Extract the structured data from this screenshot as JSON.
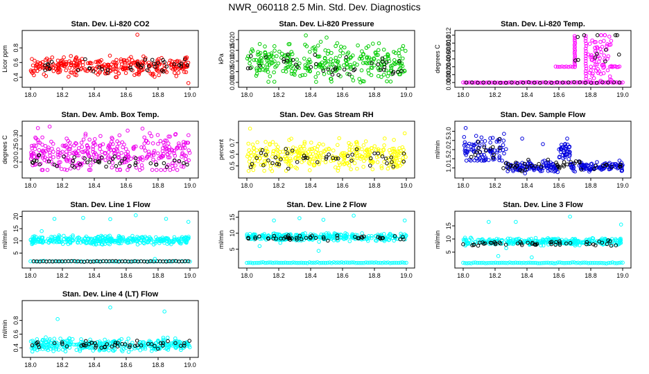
{
  "figure_title": "NWR_060118  2.5 Min. Std. Dev. Diagnostics",
  "chart_data": [
    {
      "type": "scatter",
      "title": "Stan. Dev. Li-820 CO2",
      "ylabel": "Licor ppm",
      "xlim": [
        18.0,
        19.0
      ],
      "xticks": [
        "18.0",
        "18.2",
        "18.4",
        "18.6",
        "18.8",
        "19.0"
      ],
      "ylim": [
        0.3,
        1.0
      ],
      "yticks": [
        "0.4",
        "0.6",
        "0.8"
      ],
      "color": "#ff0000",
      "series": [
        {
          "name": "main",
          "color": "#ff0000",
          "mode": "noise",
          "n": 320,
          "center": 0.55,
          "spread": 0.06,
          "min": 0.4,
          "max": 0.72
        },
        {
          "name": "black",
          "color": "#000000",
          "mode": "noise",
          "n": 40,
          "center": 0.55,
          "spread": 0.05,
          "min": 0.45,
          "max": 0.7
        }
      ],
      "outliers": [
        [
          18.67,
          0.98
        ],
        [
          18.99,
          0.32
        ],
        [
          18.98,
          0.67
        ]
      ]
    },
    {
      "type": "scatter",
      "title": "Stan. Dev. Li-820 Pressure",
      "ylabel": "kPa",
      "xlim": [
        18.0,
        19.0
      ],
      "xticks": [
        "18.0",
        "18.2",
        "18.4",
        "18.6",
        "18.8",
        "19.0"
      ],
      "ylim": [
        -0.001,
        0.023
      ],
      "yticks": [
        "0.000",
        "0.005",
        "0.010",
        "0.015",
        "0.020"
      ],
      "color": "#00cc00",
      "series": [
        {
          "name": "main",
          "color": "#00cc00",
          "mode": "noise",
          "n": 300,
          "center": 0.009,
          "spread": 0.004,
          "min": 0.0,
          "max": 0.019
        },
        {
          "name": "black",
          "color": "#000000",
          "mode": "noise",
          "n": 40,
          "center": 0.007,
          "spread": 0.003,
          "min": 0.002,
          "max": 0.014
        }
      ],
      "outliers": [
        [
          18.37,
          0.022
        ],
        [
          18.5,
          0.021
        ],
        [
          18.98,
          0.017
        ]
      ]
    },
    {
      "type": "scatter",
      "title": "Stan. Dev. Li-820 Temp.",
      "ylabel": "degrees C",
      "xlim": [
        18.0,
        19.0
      ],
      "xticks": [
        "18.0",
        "18.2",
        "18.4",
        "18.6",
        "18.8",
        "19.0"
      ],
      "ylim": [
        -0.0005,
        0.0125
      ],
      "yticks": [
        "0.000",
        "0.002",
        "0.004",
        "0.006",
        "0.008",
        "0.010",
        "0.012"
      ],
      "color": "#ff00ff",
      "series": [
        {
          "name": "baseline",
          "color": "#ff00ff",
          "mode": "line",
          "n": 80,
          "y": 0.0,
          "x0": 18.0,
          "x1": 19.0
        },
        {
          "name": "black-base",
          "color": "#000000",
          "mode": "line",
          "n": 28,
          "y": 0.0,
          "x0": 18.02,
          "x1": 18.98
        },
        {
          "name": "step",
          "color": "#ff00ff",
          "mode": "line",
          "n": 10,
          "y": 0.004,
          "x0": 18.58,
          "x1": 18.7
        },
        {
          "name": "col1",
          "color": "#ff00ff",
          "mode": "column",
          "n": 18,
          "x": 18.7,
          "min": 0.004,
          "max": 0.0118
        },
        {
          "name": "col2",
          "color": "#ff00ff",
          "mode": "column",
          "n": 18,
          "x": 18.77,
          "min": 0.001,
          "max": 0.0118
        },
        {
          "name": "cluster",
          "color": "#ff00ff",
          "mode": "noise",
          "n": 70,
          "center": 0.006,
          "spread": 0.003,
          "min": 0.0,
          "max": 0.012,
          "x0": 18.78,
          "x1": 18.93
        },
        {
          "name": "step2",
          "color": "#ff00ff",
          "mode": "line",
          "n": 8,
          "y": 0.004,
          "x0": 18.92,
          "x1": 18.98
        },
        {
          "name": "black-high",
          "color": "#000000",
          "mode": "noise",
          "n": 12,
          "center": 0.009,
          "spread": 0.003,
          "min": 0.004,
          "max": 0.012,
          "x0": 18.68,
          "x1": 18.99
        }
      ],
      "outliers": []
    },
    {
      "type": "scatter",
      "title": "Stan. Dev. Amb. Box Temp.",
      "ylabel": "degrees C",
      "xlim": [
        18.0,
        19.0
      ],
      "xticks": [
        "18.0",
        "18.2",
        "18.4",
        "18.6",
        "18.8",
        "19.0"
      ],
      "ylim": [
        0.15,
        0.345
      ],
      "yticks": [
        "0.20",
        "0.25",
        "0.30"
      ],
      "color": "#ee00ee",
      "series": [
        {
          "name": "main",
          "color": "#ee00ee",
          "mode": "noise",
          "n": 340,
          "center": 0.235,
          "spread": 0.035,
          "min": 0.17,
          "max": 0.33
        },
        {
          "name": "black",
          "color": "#000000",
          "mode": "noise",
          "n": 45,
          "center": 0.2,
          "spread": 0.012,
          "min": 0.17,
          "max": 0.24
        }
      ],
      "outliers": [
        [
          18.12,
          0.335
        ]
      ]
    },
    {
      "type": "scatter",
      "title": "Stan. Dev. Gas Stream RH",
      "ylabel": "percent",
      "xlim": [
        18.0,
        19.0
      ],
      "xticks": [
        "18.0",
        "18.2",
        "18.4",
        "18.6",
        "18.8",
        "19.0"
      ],
      "ylim": [
        0.42,
        0.86
      ],
      "yticks": [
        "0.5",
        "0.6",
        "0.7"
      ],
      "color": "#ffff00",
      "series": [
        {
          "name": "main",
          "color": "#ffff00",
          "mode": "noise",
          "n": 320,
          "center": 0.59,
          "spread": 0.06,
          "min": 0.45,
          "max": 0.76
        },
        {
          "name": "black",
          "color": "#000000",
          "mode": "noise",
          "n": 45,
          "center": 0.56,
          "spread": 0.04,
          "min": 0.47,
          "max": 0.68
        }
      ],
      "outliers": [
        [
          18.02,
          0.82
        ],
        [
          18.99,
          0.78
        ]
      ]
    },
    {
      "type": "scatter",
      "title": "Stan. Dev. Sample Flow",
      "ylabel": "ml/min",
      "xlim": [
        18.0,
        19.0
      ],
      "xticks": [
        "18.0",
        "18.2",
        "18.4",
        "18.6",
        "18.8",
        "19.0"
      ],
      "ylim": [
        0.6,
        3.4
      ],
      "yticks": [
        "1.0",
        "1.5",
        "2.0",
        "2.5",
        "3.0"
      ],
      "color": "#0000dd",
      "series": [
        {
          "name": "early",
          "color": "#0000dd",
          "mode": "noise",
          "n": 90,
          "center": 2.1,
          "spread": 0.4,
          "min": 1.4,
          "max": 3.2,
          "x0": 18.0,
          "x1": 18.27
        },
        {
          "name": "mid",
          "color": "#0000dd",
          "mode": "noise",
          "n": 110,
          "center": 1.05,
          "spread": 0.15,
          "min": 0.7,
          "max": 1.5,
          "x0": 18.27,
          "x1": 18.6
        },
        {
          "name": "bump",
          "color": "#0000dd",
          "mode": "noise",
          "n": 40,
          "center": 1.9,
          "spread": 0.3,
          "min": 1.4,
          "max": 2.6,
          "x0": 18.6,
          "x1": 18.67
        },
        {
          "name": "late",
          "color": "#0000dd",
          "mode": "noise",
          "n": 100,
          "center": 1.05,
          "spread": 0.12,
          "min": 0.8,
          "max": 1.4,
          "x0": 18.67,
          "x1": 19.0
        },
        {
          "name": "black",
          "color": "#000000",
          "mode": "noise",
          "n": 45,
          "center": 1.1,
          "spread": 0.15,
          "min": 0.8,
          "max": 1.6,
          "x0": 18.25,
          "x1": 19.0
        },
        {
          "name": "black-early",
          "color": "#000000",
          "mode": "noise",
          "n": 14,
          "center": 2.0,
          "spread": 0.3,
          "min": 1.5,
          "max": 2.6,
          "x0": 18.02,
          "x1": 18.25
        }
      ],
      "outliers": [
        [
          18.37,
          2.6
        ],
        [
          18.5,
          2.3
        ],
        [
          18.98,
          1.4
        ]
      ]
    },
    {
      "type": "scatter",
      "title": "Stan. Dev. Line 1 Flow",
      "ylabel": "ml/min",
      "xlim": [
        18.0,
        19.0
      ],
      "xticks": [
        "18.0",
        "18.2",
        "18.4",
        "18.6",
        "18.8",
        "19.0"
      ],
      "ylim": [
        0.0,
        21.0
      ],
      "yticks": [
        "5",
        "10",
        "15",
        "20"
      ],
      "color": "#00ffff",
      "series": [
        {
          "name": "main",
          "color": "#00ffff",
          "mode": "noise",
          "n": 340,
          "center": 10.3,
          "spread": 0.8,
          "min": 8.5,
          "max": 12.5
        },
        {
          "name": "low-cyan",
          "color": "#00ffff",
          "mode": "line",
          "n": 60,
          "y": 1.6,
          "x0": 18.0,
          "x1": 19.0
        },
        {
          "name": "black",
          "color": "#000000",
          "mode": "line",
          "n": 50,
          "y": 1.6,
          "x0": 18.02,
          "x1": 18.99
        }
      ],
      "outliers": [
        [
          18.15,
          19.0
        ],
        [
          18.33,
          19.4
        ],
        [
          18.5,
          18.9
        ],
        [
          18.66,
          20.5
        ],
        [
          18.85,
          19.0
        ],
        [
          18.99,
          17.8
        ],
        [
          18.07,
          14.0
        ],
        [
          18.78,
          2.6
        ]
      ]
    },
    {
      "type": "scatter",
      "title": "Stan. Dev. Line 2 Flow",
      "ylabel": "ml/min",
      "xlim": [
        18.0,
        19.0
      ],
      "xticks": [
        "18.0",
        "18.2",
        "18.4",
        "18.6",
        "18.8",
        "19.0"
      ],
      "ylim": [
        0.0,
        16.0
      ],
      "yticks": [
        "5",
        "10",
        "15"
      ],
      "color": "#00ffff",
      "series": [
        {
          "name": "main",
          "color": "#00ffff",
          "mode": "noise",
          "n": 320,
          "center": 8.8,
          "spread": 0.6,
          "min": 7.0,
          "max": 10.0
        },
        {
          "name": "low-cyan",
          "color": "#00ffff",
          "mode": "line",
          "n": 80,
          "y": 0.8,
          "x0": 18.0,
          "x1": 19.0
        },
        {
          "name": "black",
          "color": "#000000",
          "mode": "noise",
          "n": 50,
          "center": 8.6,
          "spread": 0.4,
          "min": 6.5,
          "max": 9.5
        }
      ],
      "outliers": [
        [
          18.17,
          14.0
        ],
        [
          18.33,
          14.7
        ],
        [
          18.48,
          14.2
        ],
        [
          18.67,
          15.5
        ],
        [
          18.99,
          14.0
        ],
        [
          18.45,
          4.5
        ],
        [
          18.08,
          6.0
        ],
        [
          18.21,
          7.0
        ]
      ]
    },
    {
      "type": "scatter",
      "title": "Stan. Dev. Line 3 Flow",
      "ylabel": "ml/min",
      "xlim": [
        18.0,
        19.0
      ],
      "xticks": [
        "18.0",
        "18.2",
        "18.4",
        "18.6",
        "18.8",
        "19.0"
      ],
      "ylim": [
        0.0,
        19.5
      ],
      "yticks": [
        "5",
        "10",
        "15"
      ],
      "color": "#00ffff",
      "series": [
        {
          "name": "main",
          "color": "#00ffff",
          "mode": "noise",
          "n": 320,
          "center": 9.0,
          "spread": 0.6,
          "min": 7.5,
          "max": 10.5
        },
        {
          "name": "low-cyan",
          "color": "#00ffff",
          "mode": "line",
          "n": 80,
          "y": 0.9,
          "x0": 18.0,
          "x1": 19.0
        },
        {
          "name": "black",
          "color": "#000000",
          "mode": "noise",
          "n": 50,
          "center": 8.3,
          "spread": 0.5,
          "min": 6.5,
          "max": 9.5
        }
      ],
      "outliers": [
        [
          18.16,
          16.5
        ],
        [
          18.33,
          16.5
        ],
        [
          18.67,
          18.5
        ],
        [
          18.99,
          15.5
        ],
        [
          18.22,
          3.5
        ],
        [
          18.43,
          3.0
        ],
        [
          18.27,
          6.5
        ]
      ]
    },
    {
      "type": "scatter",
      "title": "Stan. Dev. Line 4 (LT) Flow",
      "ylabel": "ml/min",
      "xlim": [
        18.0,
        19.0
      ],
      "xticks": [
        "18.0",
        "18.2",
        "18.4",
        "18.6",
        "18.8",
        "19.0"
      ],
      "ylim": [
        0.3,
        1.05
      ],
      "yticks": [
        "0.4",
        "0.6",
        "0.8"
      ],
      "color": "#00ffff",
      "series": [
        {
          "name": "main",
          "color": "#00ffff",
          "mode": "noise",
          "n": 340,
          "center": 0.44,
          "spread": 0.045,
          "min": 0.34,
          "max": 0.58
        },
        {
          "name": "black",
          "color": "#000000",
          "mode": "noise",
          "n": 50,
          "center": 0.45,
          "spread": 0.03,
          "min": 0.38,
          "max": 0.52
        }
      ],
      "outliers": [
        [
          18.17,
          0.82
        ],
        [
          18.5,
          0.99
        ],
        [
          18.84,
          0.93
        ]
      ]
    }
  ]
}
